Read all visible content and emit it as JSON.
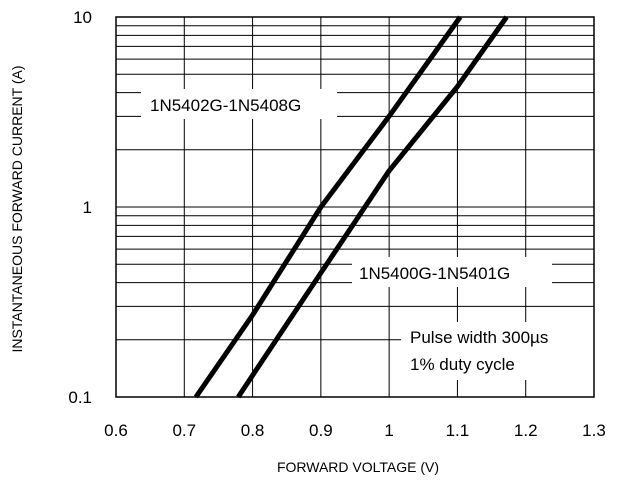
{
  "chart_data": {
    "type": "line",
    "xlabel": "FORWARD VOLTAGE (V)",
    "ylabel": "INSTANTANEOUS FORWARD CURRENT (A)",
    "x_scale": "linear",
    "y_scale": "log",
    "xlim": [
      0.6,
      1.3
    ],
    "ylim": [
      0.1,
      10
    ],
    "x_ticks": [
      "0.6",
      "0.7",
      "0.8",
      "0.9",
      "1",
      "1.1",
      "1.2",
      "1.3"
    ],
    "y_ticks": [
      "0.1",
      "1",
      "10"
    ],
    "grid": true,
    "series": [
      {
        "name": "1N5402G-1N5408G",
        "points": [
          [
            0.717,
            0.1
          ],
          [
            0.8,
            0.27
          ],
          [
            0.9,
            1.0
          ],
          [
            1.0,
            3.0
          ],
          [
            1.104,
            10
          ]
        ]
      },
      {
        "name": "1N5400G-1N5401G",
        "points": [
          [
            0.779,
            0.1
          ],
          [
            0.9,
            0.45
          ],
          [
            1.0,
            1.55
          ],
          [
            1.1,
            4.3
          ],
          [
            1.172,
            10
          ]
        ]
      }
    ],
    "annotations": {
      "series_upper_label": "1N5402G-1N5408G",
      "series_lower_label": "1N5400G-1N5401G",
      "note_line1": "Pulse width 300µs",
      "note_line2": "1% duty cycle"
    }
  }
}
